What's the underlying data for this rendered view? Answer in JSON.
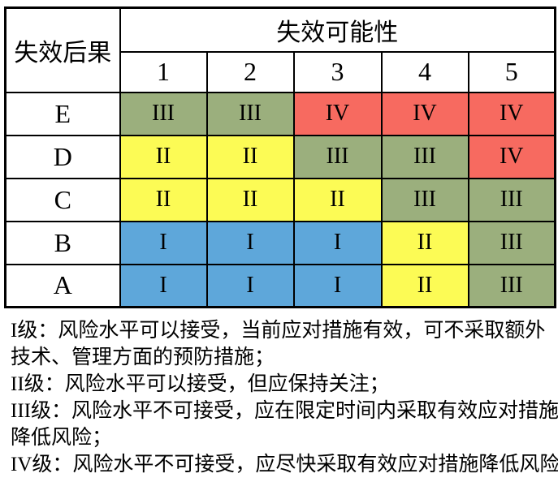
{
  "table": {
    "corner_header": "失效后果",
    "top_header": "失效可能性",
    "probability_levels": [
      "1",
      "2",
      "3",
      "4",
      "5"
    ],
    "rows": [
      {
        "label": "E",
        "cells": [
          "III",
          "III",
          "IV",
          "IV",
          "IV"
        ]
      },
      {
        "label": "D",
        "cells": [
          "II",
          "II",
          "III",
          "III",
          "IV"
        ]
      },
      {
        "label": "C",
        "cells": [
          "II",
          "II",
          "II",
          "III",
          "III"
        ]
      },
      {
        "label": "B",
        "cells": [
          "I",
          "I",
          "I",
          "II",
          "III"
        ]
      },
      {
        "label": "A",
        "cells": [
          "I",
          "I",
          "I",
          "II",
          "III"
        ]
      }
    ]
  },
  "colors": {
    "levels": {
      "I": "#5EA7DA",
      "II": "#FCFB55",
      "III": "#9BAF7D",
      "IV": "#F76A60"
    },
    "border": "#000000",
    "text": "#000000"
  },
  "legend": {
    "lines": [
      "I级：风险水平可以接受，当前应对措施有效，可不采取额外",
      "技术、管理方面的预防措施；",
      "II级：风险水平可以接受，但应保持关注；",
      "III级：风险水平不可接受，应在限定时间内采取有效应对措施",
      "降低风险；",
      "IV级：风险水平不可接受，应尽快采取有效应对措施降低风险。"
    ]
  }
}
